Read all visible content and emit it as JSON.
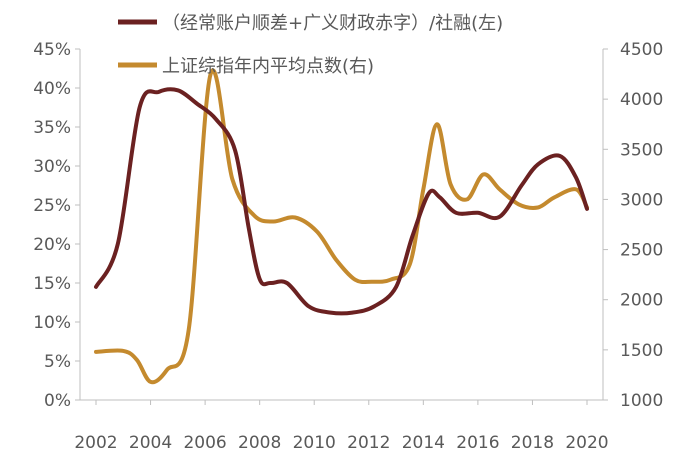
{
  "chart_data": {
    "type": "line",
    "dual_axis": true,
    "title": "",
    "legend_position": "top-center",
    "x_ticks": [
      "2002",
      "2004",
      "2006",
      "2008",
      "2010",
      "2012",
      "2014",
      "2016",
      "2018",
      "2020"
    ],
    "y_left": {
      "ticks": [
        "0%",
        "5%",
        "10%",
        "15%",
        "20%",
        "25%",
        "30%",
        "35%",
        "40%",
        "45%"
      ],
      "range": [
        0,
        45
      ],
      "unit": "%"
    },
    "y_right": {
      "ticks": [
        "1000",
        "1500",
        "2000",
        "2500",
        "3000",
        "3500",
        "4000",
        "4500"
      ],
      "range": [
        1000,
        4500
      ]
    },
    "series": [
      {
        "name": "（经常账户顺差+广义财政赤字）/社融(左)",
        "axis": "left",
        "color": "#6B2121",
        "x": [
          2002,
          2002.8,
          2003.6,
          2004.3,
          2005.0,
          2005.7,
          2006.4,
          2007.1,
          2007.6,
          2008.0,
          2008.4,
          2009.0,
          2009.8,
          2010.6,
          2011.4,
          2012.2,
          2013.0,
          2013.6,
          2014.2,
          2014.6,
          2015.2,
          2016.0,
          2016.8,
          2017.6,
          2018.2,
          2019.0,
          2019.6,
          2020
        ],
        "values": [
          14.5,
          20,
          37.5,
          39.5,
          39.7,
          38,
          36,
          32,
          22,
          15.5,
          15,
          15,
          12,
          11.2,
          11.2,
          12,
          14.5,
          21,
          26.5,
          26,
          24,
          24,
          23.5,
          27.5,
          30.2,
          31.3,
          28.5,
          24.5
        ]
      },
      {
        "name": "上证综指年内平均点数(右)",
        "axis": "right",
        "color": "#C48A2E",
        "x": [
          2002,
          2003,
          2003.5,
          2004,
          2004.6,
          2005.4,
          2006.2,
          2007.0,
          2007.8,
          2008.5,
          2009.3,
          2010.1,
          2010.8,
          2011.5,
          2012.1,
          2012.8,
          2013.5,
          2014.0,
          2014.5,
          2015.0,
          2015.6,
          2016.2,
          2016.8,
          2017.5,
          2018.2,
          2018.8,
          2019.6,
          2020
        ],
        "values": [
          1480,
          1490,
          1400,
          1180,
          1300,
          1700,
          4250,
          3200,
          2840,
          2780,
          2820,
          2680,
          2400,
          2200,
          2180,
          2200,
          2350,
          3100,
          3750,
          3150,
          3000,
          3250,
          3100,
          2950,
          2920,
          3020,
          3100,
          2920
        ]
      }
    ]
  }
}
